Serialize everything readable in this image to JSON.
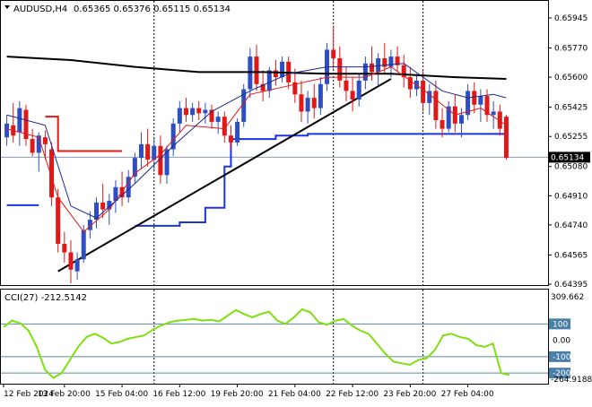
{
  "header": {
    "symbol_label": "AUDUSD,H4",
    "ohlc_text": "0.65365 0.65376 0.65115 0.65134"
  },
  "indicator": {
    "label": "CCI(27) -212.5142",
    "scale_top": "309.662",
    "scale_bottom": "-264.9188",
    "ticks": [
      "100",
      "0.00",
      "-100",
      "-200"
    ]
  },
  "colors": {
    "bull_candle": "#2e4ec4",
    "bear_candle": "#e01818",
    "ma_long": "#000000",
    "ema_fast": "#e01818",
    "ma_mid": "#1a2a8a",
    "support_line": "#1a35e0",
    "resistance_line": "#e01818",
    "trendline": "#000000",
    "cci_line": "#7fe010",
    "current_price_bg": "#000000"
  },
  "chart_data": [
    {
      "type": "candlestick",
      "title": "AUDUSD,H4",
      "price_axis_ticks": [
        "0.65945",
        "0.65770",
        "0.65600",
        "0.65425",
        "0.65255",
        "0.65080",
        "0.64910",
        "0.64740",
        "0.64565",
        "0.64395"
      ],
      "ylim": [
        0.64395,
        0.65945
      ],
      "current_price": "0.65134",
      "time_labels": [
        "12 Feb 2024",
        "13 Feb 20:00",
        "15 Feb 04:00",
        "16 Feb 12:00",
        "19 Feb 20:00",
        "21 Feb 04:00",
        "22 Feb 12:00",
        "23 Feb 20:00",
        "27 Feb 04:00"
      ],
      "candles": [
        [
          0.6525,
          0.6538,
          0.652,
          0.6533
        ],
        [
          0.6532,
          0.6545,
          0.6522,
          0.6526
        ],
        [
          0.6528,
          0.6546,
          0.652,
          0.6542
        ],
        [
          0.6541,
          0.6544,
          0.652,
          0.6524
        ],
        [
          0.6524,
          0.653,
          0.6514,
          0.6516
        ],
        [
          0.6516,
          0.6528,
          0.6505,
          0.6526
        ],
        [
          0.6525,
          0.6529,
          0.6512,
          0.6521
        ],
        [
          0.6518,
          0.6522,
          0.6485,
          0.649
        ],
        [
          0.649,
          0.6495,
          0.6458,
          0.6463
        ],
        [
          0.6463,
          0.647,
          0.6452,
          0.6458
        ],
        [
          0.6458,
          0.6465,
          0.644,
          0.6448
        ],
        [
          0.6447,
          0.6458,
          0.6442,
          0.6454
        ],
        [
          0.6454,
          0.6474,
          0.6452,
          0.6471
        ],
        [
          0.6471,
          0.6482,
          0.6466,
          0.6477
        ],
        [
          0.6477,
          0.649,
          0.6472,
          0.6487
        ],
        [
          0.6487,
          0.6498,
          0.6478,
          0.6483
        ],
        [
          0.6483,
          0.6492,
          0.6474,
          0.6488
        ],
        [
          0.6488,
          0.65,
          0.6481,
          0.6496
        ],
        [
          0.6496,
          0.6505,
          0.6485,
          0.649
        ],
        [
          0.649,
          0.6506,
          0.6487,
          0.6502
        ],
        [
          0.6502,
          0.6516,
          0.6498,
          0.6513
        ],
        [
          0.6513,
          0.6528,
          0.6507,
          0.6521
        ],
        [
          0.6521,
          0.653,
          0.6508,
          0.6512
        ],
        [
          0.6512,
          0.6524,
          0.6505,
          0.652
        ],
        [
          0.652,
          0.6526,
          0.6498,
          0.6503
        ],
        [
          0.6503,
          0.652,
          0.6498,
          0.6518
        ],
        [
          0.6518,
          0.6536,
          0.6514,
          0.6533
        ],
        [
          0.6533,
          0.6546,
          0.6528,
          0.6542
        ],
        [
          0.6542,
          0.6548,
          0.6534,
          0.6538
        ],
        [
          0.6538,
          0.6545,
          0.6534,
          0.6542
        ],
        [
          0.6542,
          0.6546,
          0.6535,
          0.6539
        ],
        [
          0.6539,
          0.6545,
          0.6533,
          0.6541
        ],
        [
          0.6541,
          0.6544,
          0.653,
          0.6534
        ],
        [
          0.6534,
          0.654,
          0.6527,
          0.6537
        ],
        [
          0.6537,
          0.654,
          0.6522,
          0.6526
        ],
        [
          0.6526,
          0.6532,
          0.6518,
          0.6522
        ],
        [
          0.6522,
          0.6536,
          0.652,
          0.6534
        ],
        [
          0.6534,
          0.6556,
          0.6531,
          0.6553
        ],
        [
          0.6553,
          0.6577,
          0.6548,
          0.6572
        ],
        [
          0.6572,
          0.6579,
          0.6552,
          0.6556
        ],
        [
          0.6556,
          0.6564,
          0.6546,
          0.6552
        ],
        [
          0.6552,
          0.6566,
          0.6548,
          0.6564
        ],
        [
          0.6564,
          0.657,
          0.6555,
          0.656
        ],
        [
          0.656,
          0.6572,
          0.6557,
          0.6569
        ],
        [
          0.6569,
          0.6572,
          0.6553,
          0.6557
        ],
        [
          0.6557,
          0.6565,
          0.6545,
          0.655
        ],
        [
          0.655,
          0.6558,
          0.6534,
          0.654
        ],
        [
          0.654,
          0.6552,
          0.6533,
          0.6548
        ],
        [
          0.6548,
          0.6556,
          0.6536,
          0.6542
        ],
        [
          0.6542,
          0.656,
          0.6538,
          0.6556
        ],
        [
          0.6556,
          0.658,
          0.6552,
          0.6576
        ],
        [
          0.6576,
          0.659,
          0.6565,
          0.6571
        ],
        [
          0.6571,
          0.6578,
          0.6554,
          0.6558
        ],
        [
          0.6558,
          0.6566,
          0.6546,
          0.6552
        ],
        [
          0.6552,
          0.656,
          0.654,
          0.6547
        ],
        [
          0.6547,
          0.6562,
          0.6543,
          0.6558
        ],
        [
          0.6558,
          0.6572,
          0.6553,
          0.6568
        ],
        [
          0.6568,
          0.6578,
          0.6558,
          0.6563
        ],
        [
          0.6563,
          0.6574,
          0.6555,
          0.6571
        ],
        [
          0.6571,
          0.658,
          0.6562,
          0.6566
        ],
        [
          0.6566,
          0.6576,
          0.656,
          0.6572
        ],
        [
          0.6572,
          0.6578,
          0.6563,
          0.6567
        ],
        [
          0.6567,
          0.6573,
          0.6554,
          0.656
        ],
        [
          0.656,
          0.6566,
          0.6548,
          0.6553
        ],
        [
          0.6553,
          0.6562,
          0.6549,
          0.6558
        ],
        [
          0.6558,
          0.6564,
          0.654,
          0.6545
        ],
        [
          0.6545,
          0.6556,
          0.6538,
          0.6552
        ],
        [
          0.6552,
          0.6558,
          0.653,
          0.6535
        ],
        [
          0.6535,
          0.6542,
          0.6525,
          0.653
        ],
        [
          0.653,
          0.6546,
          0.6528,
          0.6543
        ],
        [
          0.6543,
          0.655,
          0.6528,
          0.6533
        ],
        [
          0.6533,
          0.6542,
          0.6525,
          0.6538
        ],
        [
          0.6538,
          0.6556,
          0.6535,
          0.6552
        ],
        [
          0.6552,
          0.6557,
          0.6539,
          0.6544
        ],
        [
          0.6544,
          0.6553,
          0.6534,
          0.6549
        ],
        [
          0.6549,
          0.6553,
          0.6534,
          0.6538
        ],
        [
          0.6538,
          0.6546,
          0.653,
          0.654
        ],
        [
          0.654,
          0.6544,
          0.6526,
          0.653
        ],
        [
          0.6537,
          0.6538,
          0.6512,
          0.6513
        ]
      ],
      "series": [
        {
          "name": "long moving average",
          "values": [
            [
              0,
              0.6572
            ],
            [
              10,
              0.657
            ],
            [
              20,
              0.6566
            ],
            [
              30,
              0.6563
            ],
            [
              40,
              0.6563
            ],
            [
              50,
              0.6562
            ],
            [
              60,
              0.6562
            ],
            [
              70,
              0.656
            ],
            [
              78,
              0.6559
            ]
          ]
        },
        {
          "name": "fast moving average",
          "values": [
            [
              0,
              0.653
            ],
            [
              5,
              0.6525
            ],
            [
              8,
              0.649
            ],
            [
              12,
              0.647
            ],
            [
              16,
              0.6483
            ],
            [
              20,
              0.6504
            ],
            [
              24,
              0.6515
            ],
            [
              28,
              0.6532
            ],
            [
              34,
              0.653
            ],
            [
              38,
              0.655
            ],
            [
              44,
              0.6555
            ],
            [
              50,
              0.656
            ],
            [
              56,
              0.656
            ],
            [
              60,
              0.6566
            ],
            [
              66,
              0.655
            ],
            [
              70,
              0.6538
            ],
            [
              74,
              0.6542
            ],
            [
              78,
              0.6532
            ]
          ]
        },
        {
          "name": "mid moving average",
          "values": [
            [
              0,
              0.6538
            ],
            [
              6,
              0.6532
            ],
            [
              10,
              0.6485
            ],
            [
              14,
              0.6478
            ],
            [
              20,
              0.6498
            ],
            [
              26,
              0.652
            ],
            [
              32,
              0.654
            ],
            [
              38,
              0.6552
            ],
            [
              44,
              0.6562
            ],
            [
              50,
              0.6566
            ],
            [
              56,
              0.6566
            ],
            [
              62,
              0.6568
            ],
            [
              68,
              0.6552
            ],
            [
              72,
              0.6548
            ],
            [
              76,
              0.655
            ],
            [
              78,
              0.6548
            ]
          ]
        }
      ],
      "levels": {
        "support_steps": [
          [
            20,
            27,
            0.64735
          ],
          [
            27,
            31,
            0.64755
          ],
          [
            31,
            34,
            0.6484
          ],
          [
            34,
            35,
            0.6508
          ],
          [
            35,
            42,
            0.6524
          ],
          [
            42,
            47,
            0.6526
          ],
          [
            47,
            55,
            0.6527
          ],
          [
            55,
            78,
            0.6527
          ]
        ],
        "left_support": [
          [
            0,
            5,
            0.64855
          ]
        ],
        "resistance_steps": [
          [
            6,
            8,
            0.6537
          ],
          [
            8,
            18,
            0.6517
          ]
        ],
        "trendline": [
          [
            8,
            0.6447
          ],
          [
            60,
            0.6559
          ]
        ]
      }
    },
    {
      "type": "line",
      "title": "CCI(27) -212.5142",
      "ylim": [
        -264.9188,
        309.662
      ],
      "ticks": [
        100,
        0,
        -100,
        -200
      ],
      "values": [
        80,
        120,
        105,
        60,
        -40,
        -180,
        -230,
        -200,
        -120,
        -40,
        20,
        40,
        15,
        -20,
        -10,
        10,
        20,
        30,
        65,
        90,
        110,
        120,
        125,
        130,
        120,
        125,
        115,
        150,
        185,
        160,
        140,
        160,
        175,
        120,
        100,
        140,
        190,
        170,
        110,
        95,
        120,
        130,
        90,
        60,
        40,
        -20,
        -80,
        -130,
        -140,
        -150,
        -120,
        -110,
        -60,
        30,
        40,
        20,
        10,
        -30,
        -40,
        -20,
        -200,
        -212.5142
      ]
    }
  ]
}
